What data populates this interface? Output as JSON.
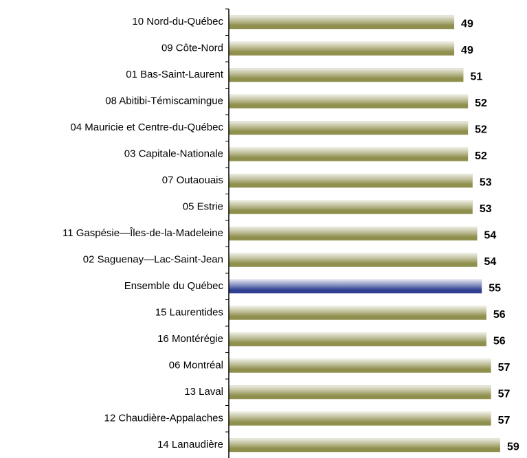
{
  "chart_data": {
    "type": "bar",
    "orientation": "horizontal",
    "categories": [
      "10 Nord-du-Québec",
      "09 Côte-Nord",
      "01 Bas-Saint-Laurent",
      "08 Abitibi-Témiscamingue",
      "04 Mauricie et Centre-du-Québec",
      "03 Capitale-Nationale",
      "07 Outaouais",
      "05 Estrie",
      "11 Gaspésie—Îles-de-la-Madeleine",
      "02 Saguenay—Lac-Saint-Jean",
      "Ensemble du Québec",
      "15 Laurentides",
      "16 Montérégie",
      "06 Montréal",
      "13 Laval",
      "12 Chaudière-Appalaches",
      "14 Lanaudière"
    ],
    "values": [
      49,
      49,
      51,
      52,
      52,
      52,
      53,
      53,
      54,
      54,
      55,
      56,
      56,
      57,
      57,
      57,
      59
    ],
    "colors": [
      "#8f8f4e",
      "#8f8f4e",
      "#8f8f4e",
      "#8f8f4e",
      "#8f8f4e",
      "#8f8f4e",
      "#8f8f4e",
      "#8f8f4e",
      "#8f8f4e",
      "#8f8f4e",
      "#2f3f92",
      "#8f8f4e",
      "#8f8f4e",
      "#8f8f4e",
      "#8f8f4e",
      "#8f8f4e",
      "#8f8f4e"
    ]
  }
}
